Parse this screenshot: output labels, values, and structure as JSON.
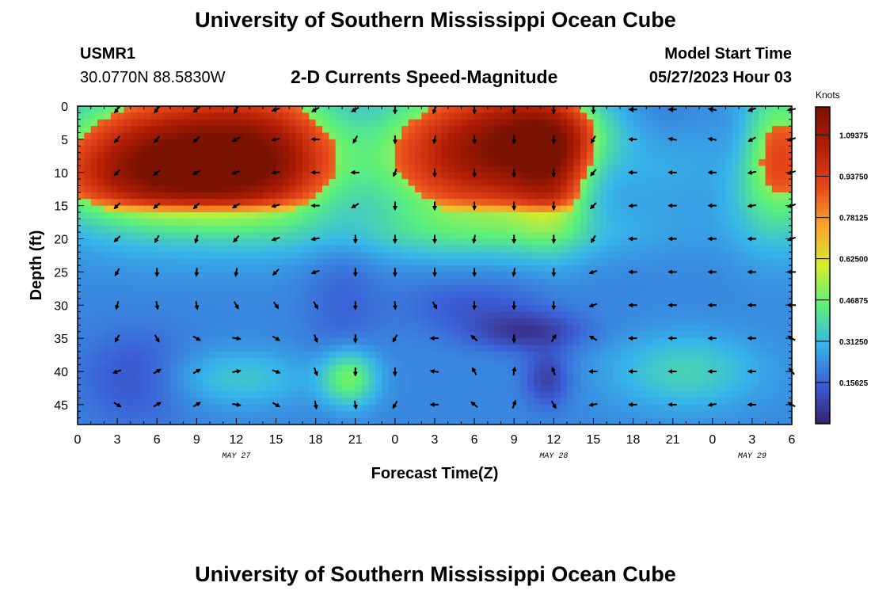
{
  "header": {
    "title": "University of Southern Mississippi Ocean Cube",
    "station_id": "USMR1",
    "station_coords": "30.0770N  88.5830W",
    "plot_title": "2-D Currents Speed-Magnitude",
    "model_start_label": "Model Start Time",
    "model_start_value": "05/27/2023 Hour 03"
  },
  "footer": {
    "title": "University of Southern Mississippi Ocean Cube"
  },
  "chart_data": {
    "type": "heatmap",
    "xlabel": "Forecast Time(Z)",
    "ylabel": "Depth (ft)",
    "x_tick_labels": [
      "0",
      "3",
      "6",
      "9",
      "12",
      "15",
      "18",
      "21",
      "0",
      "3",
      "6",
      "9",
      "12",
      "15",
      "18",
      "21",
      "0",
      "3",
      "6"
    ],
    "x_range_hours": [
      0,
      54
    ],
    "date_labels": [
      {
        "text": "MAY 27",
        "hour": 12
      },
      {
        "text": "MAY 28",
        "hour": 36
      },
      {
        "text": "MAY 29",
        "hour": 51
      }
    ],
    "y_ticks": [
      0,
      5,
      10,
      15,
      20,
      25,
      30,
      35,
      40,
      45
    ],
    "ylim": [
      0,
      48
    ],
    "colorbar": {
      "unit": "Knots",
      "min": 0,
      "max": 1.2,
      "tick_labels": [
        "1.09375",
        "0.93750",
        "0.78125",
        "0.62500",
        "0.46875",
        "0.31250",
        "0.15625"
      ],
      "tick_values": [
        1.09375,
        0.9375,
        0.78125,
        0.625,
        0.46875,
        0.3125,
        0.15625
      ]
    },
    "arrow_hours": [
      3,
      6,
      9,
      12,
      15,
      18,
      21,
      24,
      27,
      30,
      33,
      36,
      39,
      42,
      45,
      48,
      51,
      54
    ],
    "arrow_depths": [
      0.5,
      5,
      10,
      15,
      20,
      25,
      30,
      35,
      40,
      45
    ],
    "arrow_directions_deg": [
      [
        230,
        230,
        220,
        240,
        200,
        210,
        210,
        270,
        250,
        270,
        270,
        270,
        270,
        180,
        180,
        170,
        200,
        190
      ],
      [
        230,
        230,
        220,
        210,
        190,
        180,
        240,
        270,
        260,
        270,
        270,
        270,
        240,
        180,
        170,
        170,
        210,
        200
      ],
      [
        225,
        220,
        210,
        200,
        190,
        180,
        180,
        250,
        270,
        270,
        270,
        270,
        230,
        180,
        180,
        180,
        190,
        200
      ],
      [
        225,
        220,
        225,
        210,
        195,
        180,
        210,
        270,
        270,
        270,
        270,
        270,
        225,
        185,
        180,
        180,
        190,
        200
      ],
      [
        225,
        240,
        255,
        230,
        200,
        190,
        270,
        270,
        270,
        260,
        270,
        270,
        240,
        180,
        180,
        180,
        180,
        200
      ],
      [
        240,
        270,
        265,
        260,
        225,
        200,
        270,
        270,
        270,
        270,
        260,
        270,
        200,
        180,
        180,
        180,
        180,
        180
      ],
      [
        255,
        280,
        280,
        300,
        305,
        300,
        270,
        275,
        300,
        270,
        270,
        270,
        200,
        180,
        180,
        180,
        180,
        180
      ],
      [
        240,
        300,
        330,
        350,
        330,
        290,
        270,
        240,
        180,
        140,
        270,
        60,
        150,
        180,
        180,
        180,
        180,
        150
      ],
      [
        200,
        30,
        30,
        10,
        340,
        290,
        270,
        270,
        170,
        120,
        80,
        110,
        180,
        180,
        180,
        180,
        180,
        130
      ],
      [
        330,
        30,
        30,
        350,
        330,
        280,
        280,
        240,
        180,
        140,
        70,
        300,
        190,
        180,
        180,
        190,
        180,
        150
      ]
    ],
    "speed_blobs": [
      {
        "hour": 4.5,
        "depth": 8,
        "amp": 0.35,
        "sx": 5,
        "sy": 7
      },
      {
        "hour": 11,
        "depth": 7,
        "amp": 0.35,
        "sx": 5,
        "sy": 7
      },
      {
        "hour": 15,
        "depth": 7,
        "amp": 0.25,
        "sx": 4,
        "sy": 7
      },
      {
        "hour": 7,
        "depth": 11,
        "amp": 0.15,
        "sx": 8,
        "sy": 4
      },
      {
        "hour": 28,
        "depth": 7,
        "amp": 0.4,
        "sx": 4,
        "sy": 7
      },
      {
        "hour": 33,
        "depth": 6,
        "amp": 0.35,
        "sx": 3,
        "sy": 7
      },
      {
        "hour": 36,
        "depth": 10,
        "amp": 0.3,
        "sx": 2,
        "sy": 7
      },
      {
        "hour": 37,
        "depth": 4,
        "amp": 0.2,
        "sx": 3,
        "sy": 4
      },
      {
        "hour": 53,
        "depth": 8,
        "amp": 0.35,
        "sx": 2.5,
        "sy": 8
      },
      {
        "hour": 20.5,
        "depth": 41,
        "amp": 0.28,
        "sx": 1.5,
        "sy": 3
      },
      {
        "hour": 46,
        "depth": 40,
        "amp": 0.15,
        "sx": 4,
        "sy": 4
      },
      {
        "hour": 12,
        "depth": 41,
        "amp": 0.12,
        "sx": 4,
        "sy": 3
      },
      {
        "hour": 44,
        "depth": 6,
        "amp": 0.12,
        "sx": 3,
        "sy": 6
      },
      {
        "hour": 29,
        "depth": 19,
        "amp": 0.12,
        "sx": 10,
        "sy": 3
      },
      {
        "hour": 34,
        "depth": 34,
        "amp": -0.15,
        "sx": 3,
        "sy": 2
      },
      {
        "hour": 30,
        "depth": 30,
        "amp": -0.08,
        "sx": 4,
        "sy": 3
      },
      {
        "hour": 35.5,
        "depth": 41,
        "amp": -0.14,
        "sx": 1.2,
        "sy": 3
      },
      {
        "hour": 4.5,
        "depth": 41,
        "amp": -0.1,
        "sx": 3,
        "sy": 5
      },
      {
        "hour": 44,
        "depth": 3,
        "amp": -0.1,
        "sx": 2.5,
        "sy": 5
      },
      {
        "hour": 50,
        "depth": 5,
        "amp": -0.08,
        "sx": 1.5,
        "sy": 5
      },
      {
        "hour": 20,
        "depth": 30,
        "amp": -0.06,
        "sx": 2,
        "sy": 10
      }
    ],
    "speed_base": 0.22
  },
  "colors": {
    "colormap": [
      "#3a1f6e",
      "#3b5fd6",
      "#37b6ea",
      "#5cf07a",
      "#d6ec2b",
      "#f9a52c",
      "#e6461a",
      "#b11d05",
      "#7a1202"
    ]
  }
}
